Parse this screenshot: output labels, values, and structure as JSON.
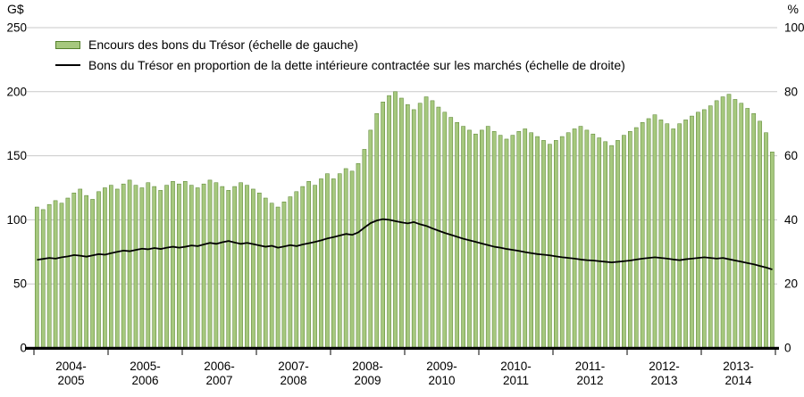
{
  "legend": [
    {
      "type": "bar",
      "label": "Encours des bons du Trésor (échelle de gauche)"
    },
    {
      "type": "line",
      "label": "Bons du Trésor en proportion de la dette intérieure contractée sur les marchés (échelle de droite)"
    }
  ],
  "colors": {
    "bar_fill": "#a6c87e",
    "bar_border": "#55812c",
    "line": "#000000",
    "grid": "#c9c9c9",
    "axis": "#000000"
  },
  "chart_data": {
    "type": "bar+line",
    "title": "",
    "x_unit": "monthly observations, fiscal years April to March",
    "categories": [
      "2004-2005",
      "2005-2006",
      "2006-2007",
      "2007-2008",
      "2008-2009",
      "2009-2010",
      "2010-2011",
      "2011-2012",
      "2012-2013",
      "2013-2014"
    ],
    "category_labels_two_line": [
      [
        "2004-",
        "2005"
      ],
      [
        "2005-",
        "2006"
      ],
      [
        "2006-",
        "2007"
      ],
      [
        "2007-",
        "2008"
      ],
      [
        "2008-",
        "2009"
      ],
      [
        "2009-",
        "2010"
      ],
      [
        "2010-",
        "2011"
      ],
      [
        "2011-",
        "2012"
      ],
      [
        "2012-",
        "2013"
      ],
      [
        "2013-",
        "2014"
      ]
    ],
    "left_axis": {
      "label": "G$",
      "range": [
        0,
        250
      ],
      "ticks": [
        250,
        200,
        150,
        100,
        50,
        0
      ]
    },
    "right_axis": {
      "label": "%",
      "range": [
        0,
        100
      ],
      "ticks": [
        100,
        80,
        60,
        40,
        20,
        0
      ]
    },
    "grid": true,
    "legend_position": "top-left-inside",
    "series": [
      {
        "name": "Encours des bons du Trésor (échelle de gauche)",
        "type": "bar",
        "axis": "left",
        "unit": "G$",
        "values": [
          110,
          108,
          112,
          115,
          113,
          117,
          121,
          124,
          119,
          116,
          122,
          125,
          127,
          124,
          128,
          131,
          127,
          125,
          129,
          126,
          123,
          127,
          130,
          128,
          130,
          127,
          125,
          128,
          131,
          129,
          126,
          123,
          126,
          129,
          127,
          124,
          121,
          117,
          113,
          110,
          114,
          118,
          122,
          126,
          130,
          127,
          132,
          136,
          132,
          136,
          140,
          138,
          144,
          155,
          170,
          183,
          192,
          197,
          200,
          195,
          190,
          186,
          191,
          196,
          193,
          188,
          184,
          180,
          176,
          173,
          170,
          167,
          170,
          173,
          169,
          166,
          163,
          166,
          169,
          171,
          168,
          165,
          162,
          159,
          162,
          165,
          168,
          171,
          173,
          170,
          167,
          164,
          161,
          158,
          162,
          166,
          169,
          172,
          176,
          179,
          182,
          178,
          175,
          171,
          175,
          178,
          181,
          184,
          186,
          189,
          193,
          196,
          198,
          194,
          191,
          187,
          183,
          177,
          168,
          153
        ]
      },
      {
        "name": "Bons du Trésor en proportion de la dette intérieure contractée sur les marchés (échelle de droite)",
        "type": "line",
        "axis": "right",
        "unit": "%",
        "values": [
          27.5,
          27.8,
          28.1,
          27.9,
          28.3,
          28.6,
          29.0,
          28.8,
          28.5,
          28.9,
          29.3,
          29.1,
          29.6,
          30.0,
          30.4,
          30.2,
          30.6,
          31.0,
          30.8,
          31.2,
          30.9,
          31.3,
          31.6,
          31.3,
          31.6,
          32.0,
          31.8,
          32.3,
          32.8,
          32.5,
          33.0,
          33.4,
          32.9,
          32.5,
          32.8,
          32.4,
          32.0,
          31.6,
          31.9,
          31.3,
          31.7,
          32.1,
          31.8,
          32.3,
          32.7,
          33.1,
          33.6,
          34.2,
          34.6,
          35.1,
          35.6,
          35.3,
          36.1,
          37.6,
          39.0,
          39.8,
          40.2,
          40.0,
          39.6,
          39.2,
          38.9,
          39.3,
          38.6,
          38.1,
          37.3,
          36.6,
          35.9,
          35.3,
          34.7,
          34.1,
          33.6,
          33.1,
          32.6,
          32.1,
          31.6,
          31.3,
          30.9,
          30.6,
          30.3,
          29.9,
          29.6,
          29.3,
          29.1,
          28.9,
          28.6,
          28.3,
          28.1,
          27.9,
          27.6,
          27.4,
          27.3,
          27.1,
          26.9,
          26.7,
          26.9,
          27.1,
          27.3,
          27.6,
          27.9,
          28.1,
          28.3,
          28.1,
          27.9,
          27.6,
          27.4,
          27.7,
          27.9,
          28.1,
          28.3,
          28.1,
          27.9,
          28.1,
          27.7,
          27.3,
          26.9,
          26.5,
          26.1,
          25.6,
          25.1,
          24.5
        ]
      }
    ]
  }
}
